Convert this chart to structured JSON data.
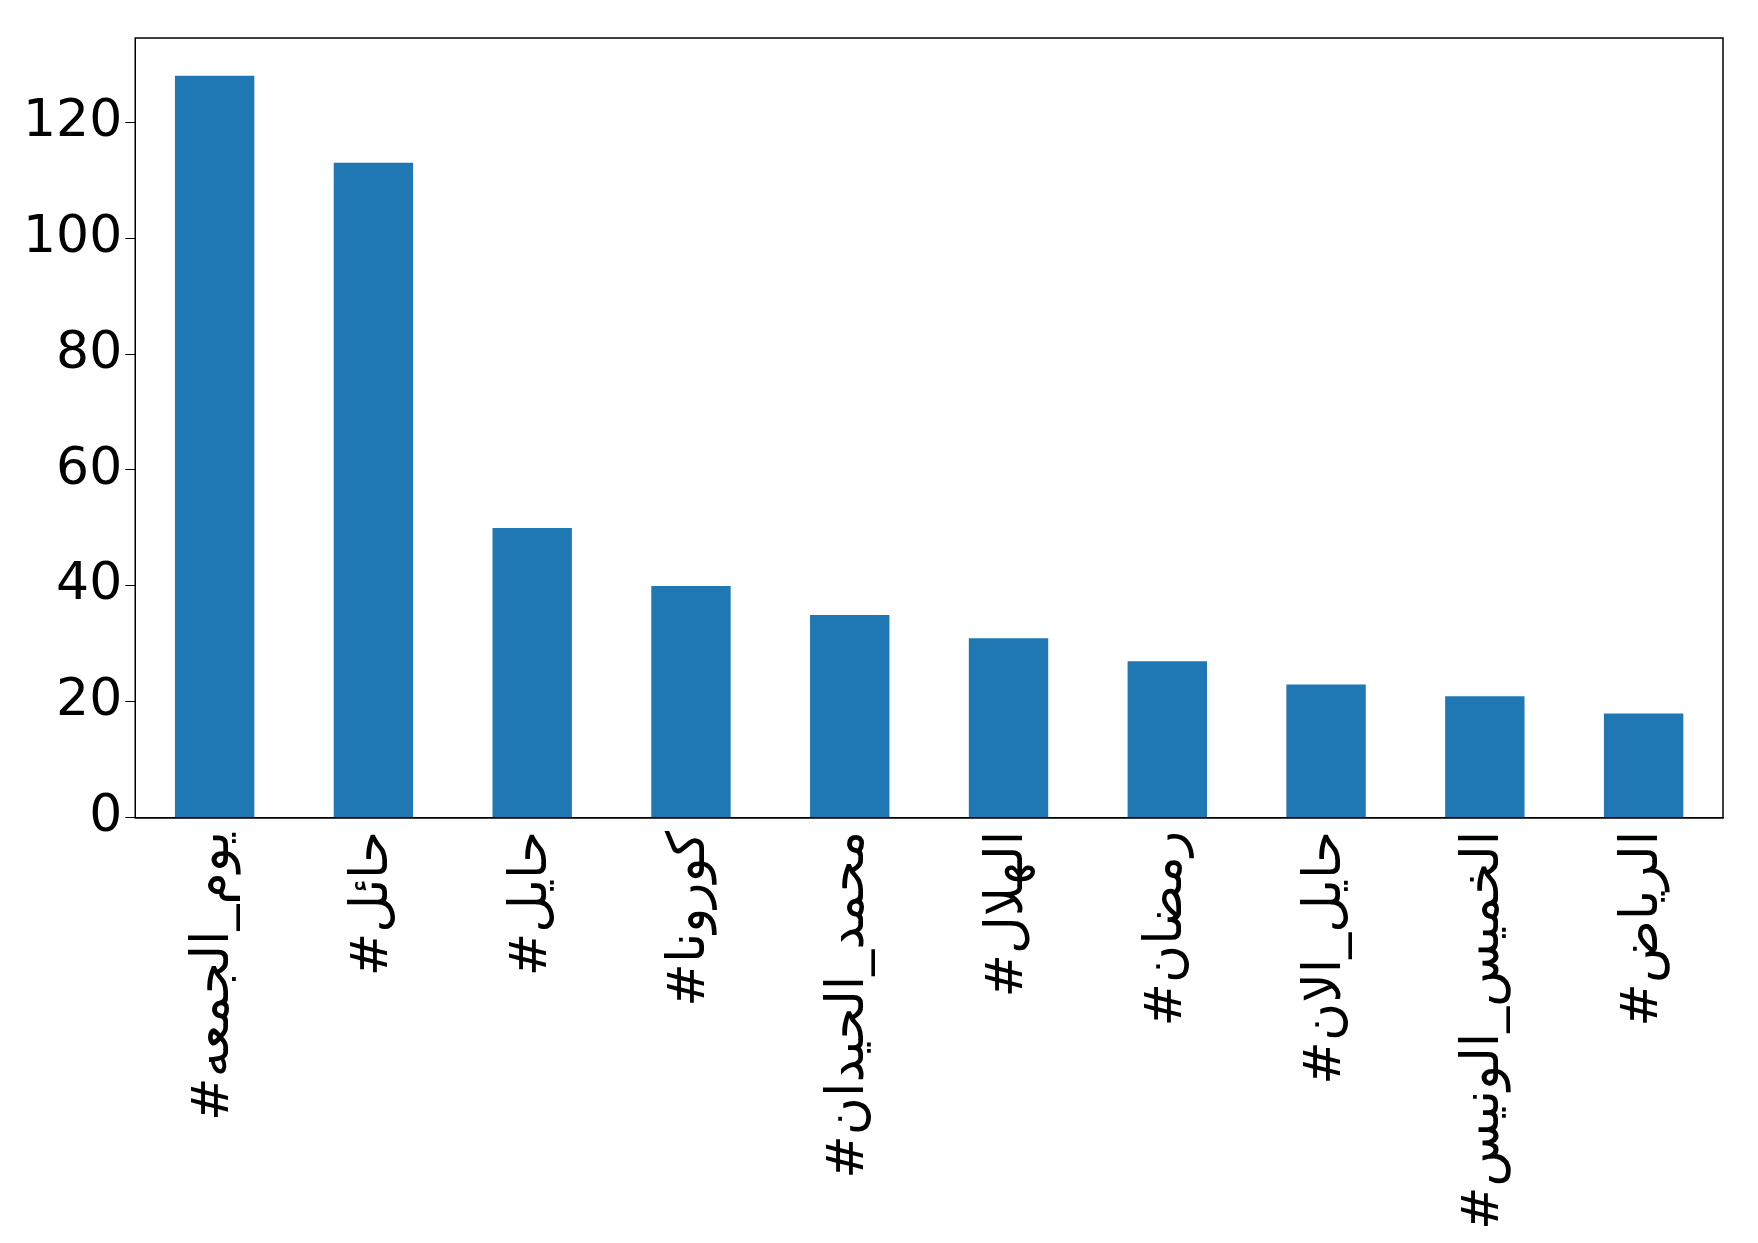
{
  "chart_data": {
    "type": "bar",
    "categories": [
      "#يوم_الجمعه",
      "#حائل",
      "#حايل",
      "#كورونا",
      "#محمد_الحيدان",
      "#الهلال",
      "#رمضان",
      "#حايل_الان",
      "#الخميس_الونيس",
      "#الرياض"
    ],
    "values": [
      128,
      113,
      50,
      40,
      35,
      31,
      27,
      23,
      21,
      18
    ],
    "color": "#1f77b4",
    "ylim": [
      0,
      134.5
    ],
    "yticks": [
      0,
      20,
      40,
      60,
      80,
      100,
      120
    ],
    "grid": false,
    "legend": false
  }
}
